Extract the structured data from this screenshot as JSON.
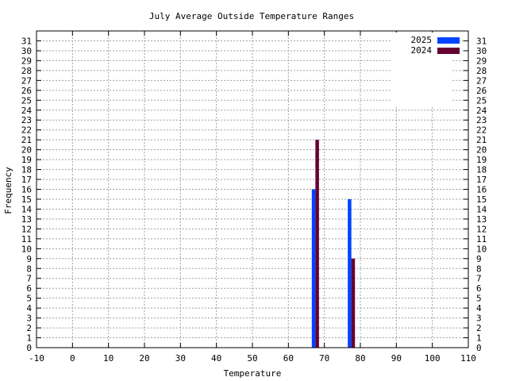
{
  "chart_data": {
    "type": "bar",
    "title": "July Average Outside Temperature Ranges",
    "xlabel": "Temperature",
    "ylabel": "Frequency",
    "xlim": [
      -10,
      110
    ],
    "ylim": [
      0,
      32
    ],
    "x_ticks": [
      -10,
      0,
      10,
      20,
      30,
      40,
      50,
      60,
      70,
      80,
      90,
      100,
      110
    ],
    "y_ticks": [
      0,
      1,
      2,
      3,
      4,
      5,
      6,
      7,
      8,
      9,
      10,
      11,
      12,
      13,
      14,
      15,
      16,
      17,
      18,
      19,
      20,
      21,
      22,
      23,
      24,
      25,
      26,
      27,
      28,
      29,
      30,
      31
    ],
    "grid": true,
    "legend_position": "top-right",
    "series": [
      {
        "name": "2025",
        "color": "#0044ff",
        "points": [
          {
            "x": 67,
            "y": 16
          },
          {
            "x": 77,
            "y": 15
          }
        ]
      },
      {
        "name": "2024",
        "color": "#660033",
        "points": [
          {
            "x": 68,
            "y": 21
          },
          {
            "x": 78,
            "y": 9
          }
        ]
      }
    ]
  }
}
